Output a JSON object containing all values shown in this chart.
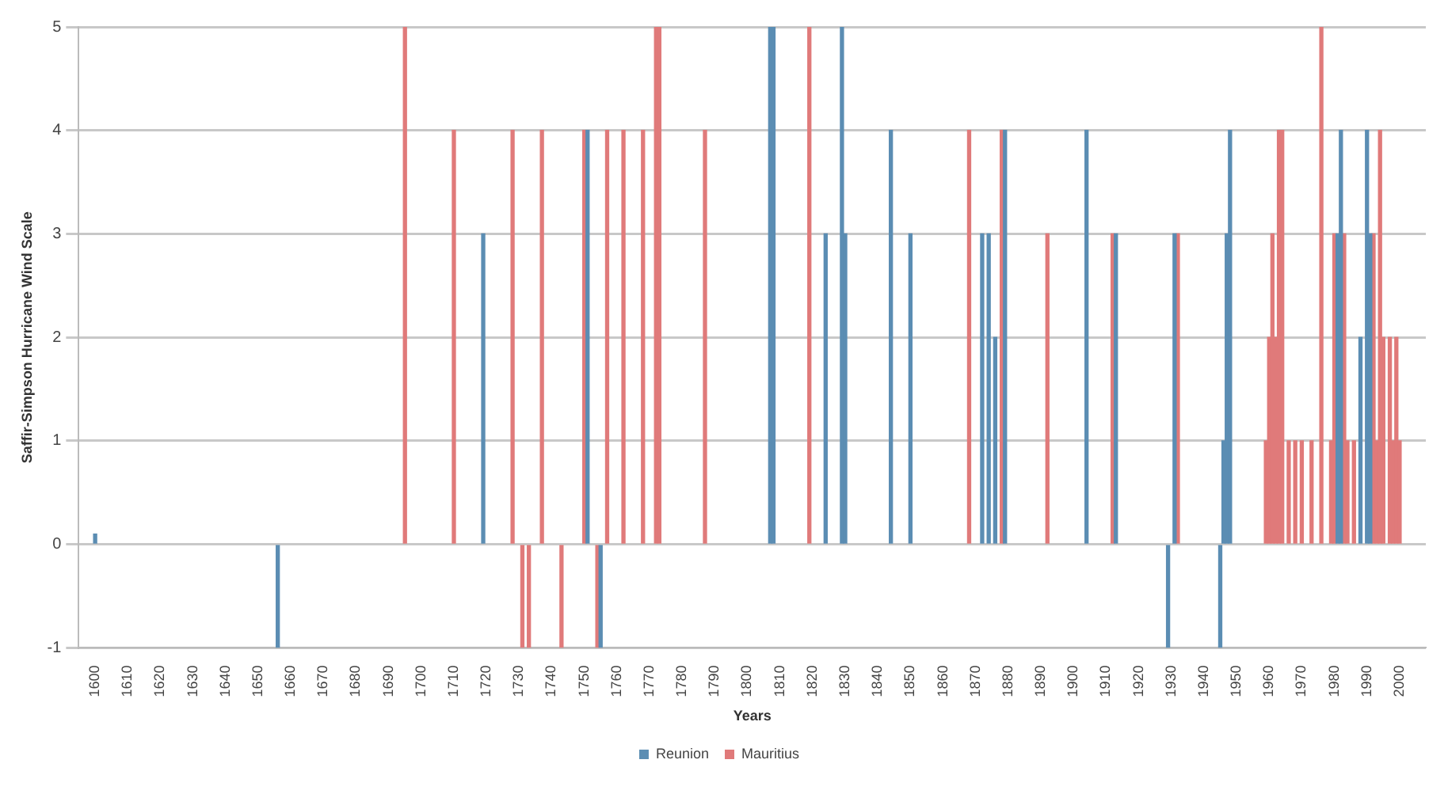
{
  "chart_data": {
    "type": "bar",
    "xlabel": "Years",
    "ylabel": "Saffir-Simpson Hurricane Wind Scale",
    "xlim": [
      1600,
      2003
    ],
    "xticks": [
      1600,
      1610,
      1620,
      1630,
      1640,
      1650,
      1660,
      1670,
      1680,
      1690,
      1700,
      1710,
      1720,
      1730,
      1740,
      1750,
      1760,
      1770,
      1780,
      1790,
      1800,
      1810,
      1820,
      1830,
      1840,
      1850,
      1860,
      1870,
      1880,
      1890,
      1900,
      1910,
      1920,
      1930,
      1940,
      1950,
      1960,
      1970,
      1980,
      1990,
      2000
    ],
    "ylim": [
      -1,
      5
    ],
    "yticks": [
      -1,
      0,
      1,
      2,
      3,
      4,
      5
    ],
    "grid": "y",
    "legend": "bottom",
    "series": [
      {
        "name": "Reunion",
        "color": "#5b8db3",
        "x": [
          1600,
          1656,
          1719,
          1751,
          1755,
          1807,
          1808,
          1824,
          1829,
          1830,
          1844,
          1850,
          1872,
          1874,
          1876,
          1879,
          1904,
          1913,
          1929,
          1931,
          1945,
          1946,
          1947,
          1948,
          1981,
          1982,
          1988,
          1990,
          1991
        ],
        "values": [
          0.1,
          -1,
          3,
          4,
          -1,
          5,
          5,
          3,
          5,
          3,
          4,
          3,
          3,
          3,
          2,
          4,
          4,
          3,
          -1,
          3,
          -1,
          1,
          3,
          4,
          3,
          4,
          2,
          4,
          3
        ]
      },
      {
        "name": "Mauritius",
        "color": "#e07a7a",
        "x": [
          1695,
          1710,
          1728,
          1731,
          1733,
          1737,
          1743,
          1750,
          1754,
          1757,
          1762,
          1768,
          1772,
          1773,
          1787,
          1819,
          1868,
          1878,
          1892,
          1912,
          1932,
          1959,
          1960,
          1961,
          1962,
          1963,
          1964,
          1966,
          1968,
          1970,
          1973,
          1976,
          1979,
          1980,
          1983,
          1984,
          1986,
          1992,
          1993,
          1994,
          1995,
          1997,
          1998,
          1999,
          2000
        ],
        "values": [
          5,
          4,
          4,
          -1,
          -1,
          4,
          -1,
          4,
          -1,
          4,
          4,
          4,
          5,
          5,
          4,
          5,
          4,
          4,
          3,
          3,
          3,
          1,
          2,
          3,
          2,
          4,
          4,
          1,
          1,
          1,
          1,
          5,
          1,
          3,
          3,
          1,
          1,
          3,
          1,
          4,
          2,
          2,
          1,
          2,
          1
        ]
      }
    ]
  }
}
